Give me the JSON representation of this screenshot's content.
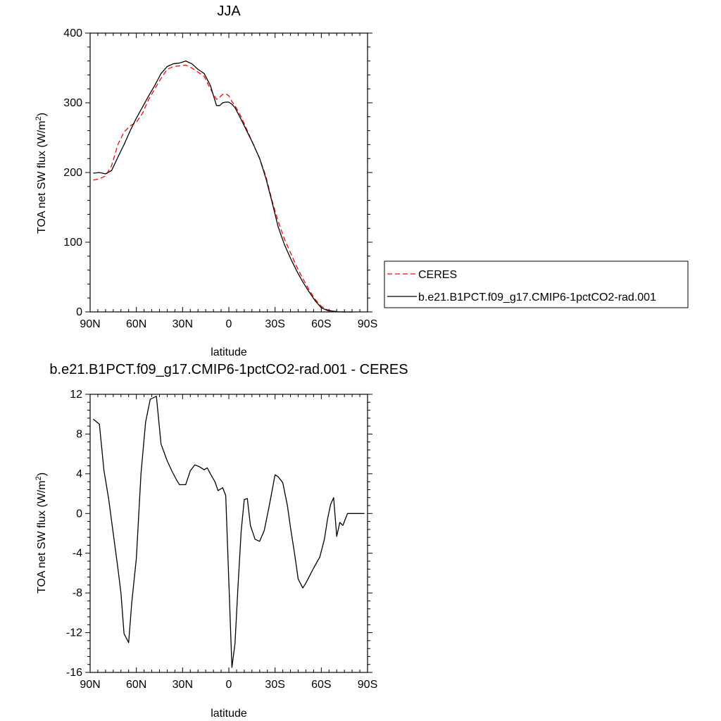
{
  "chart_data": [
    {
      "type": "line",
      "title": "JJA",
      "xlabel": "latitude",
      "ylabel": "TOA net SW flux (W/m²)",
      "ylabel_main": "TOA net SW flux (W/m",
      "ylabel_sup": "2",
      "ylabel_end": ")",
      "xlim": [
        90,
        -90
      ],
      "ylim": [
        0,
        400
      ],
      "xticks": [
        90,
        60,
        30,
        0,
        -30,
        -60,
        -90
      ],
      "xtick_labels": [
        "90N",
        "60N",
        "30N",
        "0",
        "30S",
        "60S",
        "90S"
      ],
      "yticks": [
        0,
        100,
        200,
        300,
        400
      ],
      "ytick_labels": [
        "0",
        "100",
        "200",
        "300",
        "400"
      ],
      "grid": false,
      "legend_position": "right",
      "series": [
        {
          "name": "CERES",
          "color": "#ff0000",
          "dash": "dashed",
          "x": [
            88,
            84,
            80,
            76,
            72,
            68,
            64,
            60,
            56,
            52,
            48,
            44,
            40,
            36,
            32,
            28,
            24,
            20,
            16,
            12,
            8,
            6,
            4,
            2,
            0,
            -2,
            -4,
            -8,
            -12,
            -16,
            -20,
            -24,
            -28,
            -32,
            -36,
            -40,
            -44,
            -48,
            -52,
            -56,
            -60,
            -64,
            -68,
            -72,
            -76,
            -80
          ],
          "y": [
            189,
            191,
            195,
            210,
            240,
            258,
            267,
            272,
            285,
            305,
            320,
            335,
            348,
            352,
            353,
            354,
            350,
            344,
            338,
            320,
            305,
            308,
            312,
            313,
            310,
            302,
            296,
            280,
            260,
            240,
            220,
            195,
            160,
            130,
            105,
            85,
            65,
            48,
            32,
            18,
            8,
            3,
            1,
            0,
            0,
            0
          ]
        },
        {
          "name": "b.e21.B1PCT.f09_g17.CMIP6-1pctCO2-rad.001",
          "color": "#000000",
          "dash": "solid",
          "x": [
            88,
            84,
            80,
            76,
            72,
            68,
            64,
            60,
            56,
            52,
            48,
            44,
            40,
            36,
            32,
            28,
            24,
            20,
            16,
            12,
            8,
            6,
            4,
            2,
            0,
            -2,
            -4,
            -8,
            -12,
            -16,
            -20,
            -24,
            -28,
            -32,
            -36,
            -40,
            -44,
            -48,
            -52,
            -56,
            -60,
            -64,
            -68,
            -72,
            -76,
            -80
          ],
          "y": [
            199,
            200,
            198,
            203,
            222,
            240,
            260,
            278,
            294,
            310,
            325,
            342,
            352,
            356,
            357,
            360,
            356,
            348,
            342,
            325,
            296,
            296,
            300,
            301,
            301,
            298,
            293,
            276,
            258,
            240,
            220,
            192,
            158,
            122,
            97,
            77,
            59,
            43,
            29,
            16,
            6,
            2,
            1,
            0,
            0,
            0
          ]
        }
      ]
    },
    {
      "type": "line",
      "title": "b.e21.B1PCT.f09_g17.CMIP6-1pctCO2-rad.001 - CERES",
      "xlabel": "latitude",
      "ylabel": "TOA net SW flux (W/m²)",
      "ylabel_main": "TOA net SW flux (W/m",
      "ylabel_sup": "2",
      "ylabel_end": ")",
      "xlim": [
        90,
        -90
      ],
      "ylim": [
        -16,
        12
      ],
      "xticks": [
        90,
        60,
        30,
        0,
        -30,
        -60,
        -90
      ],
      "xtick_labels": [
        "90N",
        "60N",
        "30N",
        "0",
        "30S",
        "60S",
        "90S"
      ],
      "yticks": [
        -16,
        -12,
        -8,
        -4,
        0,
        4,
        8,
        12
      ],
      "ytick_labels": [
        "-16",
        "-12",
        "-8",
        "-4",
        "0",
        "4",
        "8",
        "12"
      ],
      "grid": false,
      "series": [
        {
          "color": "#000000",
          "dash": "solid",
          "x": [
            88,
            84,
            81,
            78,
            75,
            72,
            70,
            68,
            65,
            63,
            60,
            57,
            54,
            51,
            47,
            44,
            40,
            37,
            34,
            32,
            28,
            25,
            22,
            19,
            16,
            14,
            12,
            9,
            7,
            4,
            2,
            -2,
            -4,
            -6,
            -8,
            -10,
            -12,
            -14,
            -17,
            -20,
            -23,
            -26,
            -30,
            -32,
            -35,
            -38,
            -40,
            -43,
            -45,
            -48,
            -50,
            -55,
            -59,
            -62,
            -64,
            -66,
            -68,
            -70,
            -72,
            -74,
            -77,
            -80,
            -84,
            -88
          ],
          "y": [
            9.5,
            9.0,
            4.3,
            1.5,
            -2.0,
            -5.5,
            -8.0,
            -12.1,
            -13.0,
            -9.0,
            -4.5,
            4.0,
            9.2,
            11.5,
            11.8,
            7.0,
            5.3,
            4.3,
            3.4,
            2.9,
            2.9,
            4.3,
            4.9,
            4.7,
            4.4,
            4.6,
            4.0,
            3.2,
            2.3,
            2.6,
            1.8,
            -15.5,
            -13.1,
            -7.2,
            -1.8,
            1.4,
            1.5,
            -1.2,
            -2.6,
            -2.8,
            -1.7,
            0.6,
            3.9,
            3.7,
            3.1,
            0.8,
            -1.4,
            -4.4,
            -6.6,
            -7.5,
            -7.0,
            -5.5,
            -4.4,
            -2.6,
            -0.6,
            0.9,
            1.6,
            -2.3,
            -0.9,
            -1.2,
            0.0,
            0.0,
            0.0,
            0.0
          ]
        }
      ]
    }
  ]
}
